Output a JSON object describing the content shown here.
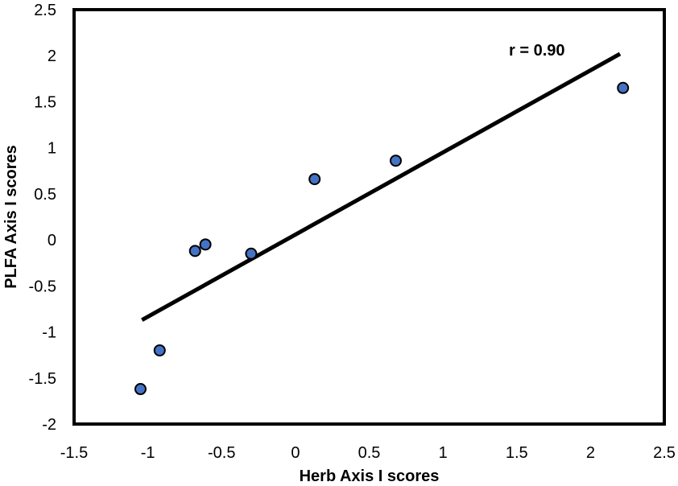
{
  "chart_data": {
    "type": "scatter",
    "title": "",
    "xlabel": "Herb Axis I scores",
    "ylabel": "PLFA Axis I scores",
    "xlim": [
      -1.5,
      2.5
    ],
    "ylim": [
      -2,
      2.5
    ],
    "x_ticks": [
      "-1.5",
      "-1",
      "-0.5",
      "0",
      "0.5",
      "1",
      "1.5",
      "2",
      "2.5"
    ],
    "y_ticks": [
      "-2",
      "-1.5",
      "-1",
      "-0.5",
      "0",
      "0.5",
      "1",
      "1.5",
      "2",
      "2.5"
    ],
    "grid": false,
    "legend": "none",
    "series": [
      {
        "points": [
          {
            "x": -1.05,
            "y": -1.62
          },
          {
            "x": -0.92,
            "y": -1.2
          },
          {
            "x": -0.68,
            "y": -0.12
          },
          {
            "x": -0.61,
            "y": -0.05
          },
          {
            "x": -0.3,
            "y": -0.15
          },
          {
            "x": 0.13,
            "y": 0.66
          },
          {
            "x": 0.68,
            "y": 0.86
          },
          {
            "x": 2.22,
            "y": 1.65
          }
        ]
      }
    ],
    "trendline": {
      "x": [
        -1.04,
        2.2
      ],
      "y": [
        -0.87,
        2.02
      ]
    },
    "annotation": "r = 0.90",
    "colors": {
      "marker_fill": "#4472c4",
      "marker_stroke": "#000000",
      "line": "#000000"
    }
  }
}
